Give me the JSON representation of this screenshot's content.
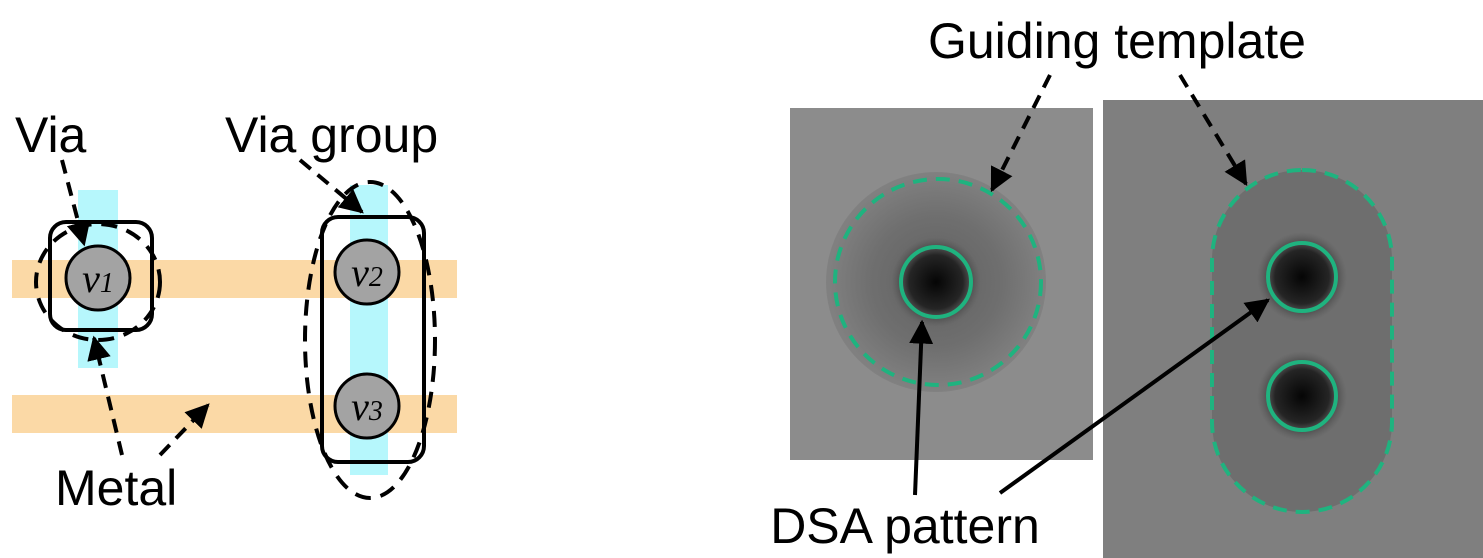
{
  "left_panel": {
    "labels": {
      "via": "Via",
      "via_group": "Via group",
      "metal": "Metal"
    },
    "vias": [
      {
        "letter": "v",
        "index": "1"
      },
      {
        "letter": "v",
        "index": "2"
      },
      {
        "letter": "v",
        "index": "3"
      }
    ]
  },
  "right_panel": {
    "labels": {
      "guiding_template": "Guiding template",
      "dsa_pattern": "DSA pattern"
    }
  }
}
